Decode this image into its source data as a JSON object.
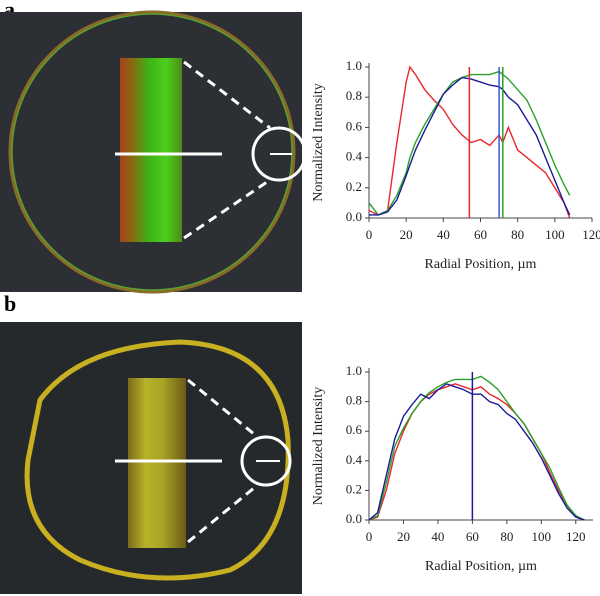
{
  "panel_labels": [
    "a",
    "b"
  ],
  "chart_data": [
    {
      "type": "line",
      "xlabel": "Radial Position, µm",
      "ylabel": "Normalized Intensity",
      "x": [
        0,
        5,
        10,
        15,
        20,
        22,
        25,
        30,
        35,
        40,
        45,
        50,
        55,
        60,
        65,
        70,
        72,
        75,
        80,
        85,
        90,
        95,
        100,
        105,
        108
      ],
      "series": [
        {
          "color": "#e8282e",
          "values": [
            0.05,
            0.02,
            0.05,
            0.5,
            0.9,
            1.0,
            0.95,
            0.85,
            0.78,
            0.72,
            0.62,
            0.55,
            0.5,
            0.52,
            0.48,
            0.55,
            0.5,
            0.6,
            0.45,
            0.4,
            0.35,
            0.3,
            0.2,
            0.1,
            0
          ]
        },
        {
          "color": "#2aa02a",
          "values": [
            0.1,
            0.02,
            0.05,
            0.15,
            0.3,
            0.4,
            0.5,
            0.62,
            0.72,
            0.82,
            0.9,
            0.93,
            0.95,
            0.95,
            0.95,
            0.97,
            0.95,
            0.92,
            0.85,
            0.78,
            0.65,
            0.5,
            0.35,
            0.22,
            0.15
          ]
        },
        {
          "color": "#1a1a9a",
          "values": [
            0.02,
            0.02,
            0.04,
            0.12,
            0.28,
            0.35,
            0.45,
            0.58,
            0.7,
            0.82,
            0.88,
            0.93,
            0.92,
            0.9,
            0.88,
            0.87,
            0.85,
            0.8,
            0.75,
            0.65,
            0.55,
            0.4,
            0.25,
            0.1,
            0.02
          ]
        }
      ],
      "markers": [
        {
          "x": 54,
          "color": "#e8282e"
        },
        {
          "x": 70,
          "color": "#3a5ad0"
        },
        {
          "x": 72,
          "color": "#2aa02a"
        }
      ],
      "xlim": [
        0,
        120
      ],
      "xticks": [
        0,
        20,
        40,
        60,
        80,
        100,
        120
      ],
      "ylim": [
        0,
        1
      ],
      "yticks": [
        {
          "value": 0,
          "label": "0.0"
        },
        0.2,
        0.4,
        0.6,
        0.8,
        {
          "value": 1,
          "label": "1.0"
        }
      ]
    },
    {
      "type": "line",
      "xlabel": "Radial Position, µm",
      "ylabel": "Normalized Intensity",
      "x": [
        0,
        5,
        10,
        15,
        20,
        25,
        30,
        35,
        40,
        45,
        50,
        55,
        60,
        65,
        70,
        75,
        80,
        85,
        90,
        95,
        100,
        105,
        110,
        115,
        120,
        125
      ],
      "series": [
        {
          "color": "#e8282e",
          "values": [
            0,
            0.02,
            0.2,
            0.45,
            0.6,
            0.72,
            0.8,
            0.85,
            0.88,
            0.9,
            0.92,
            0.9,
            0.88,
            0.9,
            0.85,
            0.82,
            0.78,
            0.72,
            0.65,
            0.55,
            0.45,
            0.32,
            0.2,
            0.1,
            0.02,
            0
          ]
        },
        {
          "color": "#2aa02a",
          "values": [
            0,
            0.03,
            0.25,
            0.5,
            0.62,
            0.72,
            0.8,
            0.86,
            0.9,
            0.93,
            0.95,
            0.95,
            0.95,
            0.97,
            0.93,
            0.88,
            0.8,
            0.72,
            0.65,
            0.55,
            0.45,
            0.35,
            0.22,
            0.1,
            0.03,
            0
          ]
        },
        {
          "color": "#1a1a9a",
          "values": [
            0,
            0.05,
            0.3,
            0.55,
            0.7,
            0.78,
            0.85,
            0.82,
            0.88,
            0.92,
            0.9,
            0.88,
            0.85,
            0.85,
            0.8,
            0.78,
            0.72,
            0.68,
            0.6,
            0.52,
            0.42,
            0.3,
            0.18,
            0.08,
            0.02,
            0
          ]
        }
      ],
      "markers": [
        {
          "x": 60,
          "color": "#1a1a9a"
        }
      ],
      "xlim": [
        0,
        130
      ],
      "xticks": [
        0,
        20,
        40,
        60,
        80,
        100,
        120
      ],
      "ylim": [
        0,
        1
      ],
      "yticks": [
        {
          "value": 0,
          "label": "0.0"
        },
        0.2,
        0.4,
        0.6,
        0.8,
        {
          "value": 1,
          "label": "1.0"
        }
      ]
    }
  ]
}
